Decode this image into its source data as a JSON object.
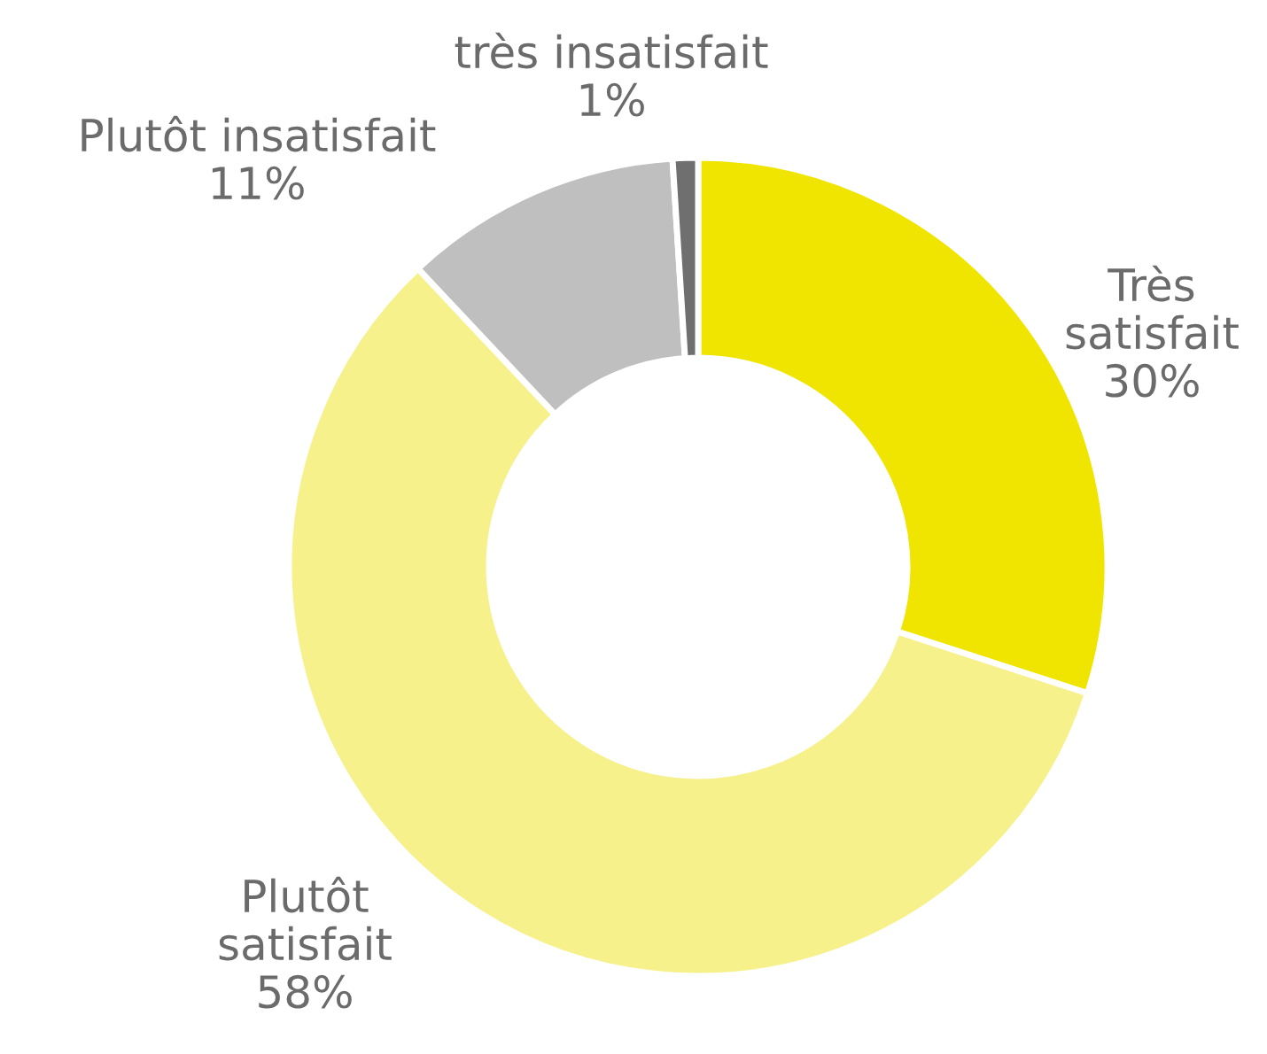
{
  "chart_data": {
    "type": "donut",
    "categories": [
      "Très\nsatisfait",
      "Plutôt\nsatisfait",
      "Plutôt insatisfait",
      "très insatisfait"
    ],
    "values": [
      30,
      58,
      11,
      1
    ],
    "value_labels": [
      "30%",
      "58%",
      "11%",
      "1%"
    ],
    "colors": [
      "#f0e500",
      "#f6f18a",
      "#bfbfbf",
      "#6f6f6f"
    ],
    "legend": false
  }
}
